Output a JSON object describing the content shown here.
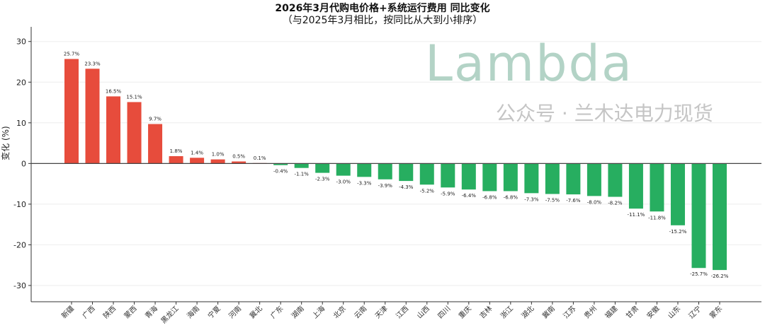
{
  "chart_data": {
    "type": "bar",
    "title": "2026年3月代购电价格+系统运行费用 同比变化",
    "subtitle": "（与2025年3月相比，按同比从大到小排序）",
    "ylabel": "变化 (%)",
    "xlabel": "",
    "ylim": [
      -34,
      33.6
    ],
    "yticks": [
      30,
      20,
      10,
      0,
      -10,
      -20,
      -30
    ],
    "grid": true,
    "categories": [
      "新疆",
      "广西",
      "陕西",
      "蒙西",
      "青海",
      "黑龙江",
      "海南",
      "宁夏",
      "河南",
      "冀北",
      "广东",
      "湖南",
      "上海",
      "北京",
      "云南",
      "天津",
      "江西",
      "山西",
      "四川",
      "重庆",
      "吉林",
      "浙江",
      "湖北",
      "冀南",
      "江苏",
      "贵州",
      "福建",
      "甘肃",
      "安徽",
      "山东",
      "辽宁",
      "蒙东"
    ],
    "values": [
      25.7,
      23.3,
      16.5,
      15.1,
      9.7,
      1.8,
      1.4,
      1.0,
      0.5,
      0.1,
      -0.4,
      -1.1,
      -2.3,
      -3.0,
      -3.3,
      -3.9,
      -4.3,
      -5.2,
      -5.9,
      -6.4,
      -6.8,
      -6.8,
      -7.3,
      -7.5,
      -7.6,
      -8.0,
      -8.2,
      -11.1,
      -11.8,
      -15.2,
      -25.7,
      -26.2
    ],
    "colors": {
      "positive": "#e74c3c",
      "negative": "#27ae60"
    }
  },
  "watermark": {
    "logo": "Lambda",
    "text": "公众号 · 兰木达电力现货"
  }
}
